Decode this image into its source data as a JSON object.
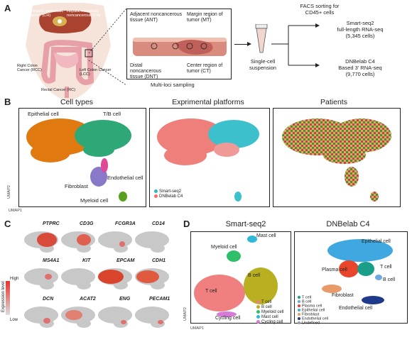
{
  "panel_labels": {
    "a": "A",
    "b": "B",
    "c": "C",
    "d": "D"
  },
  "panel_a": {
    "body_labels": [
      "Hepatic metastatic tumor (CH)",
      "Hepatic metastatic noncancerous (PH)",
      "Right Colon Cancer (RCC)",
      "Left Colon Cancer (LCC)",
      "Rectal Cancer (RC)"
    ],
    "loci": {
      "ant": "Adjacent noncancerous tissue (ANT)",
      "mt": "Margin region of tumor (MT)",
      "dnt": "Distal noncancerous tissue (DNT)",
      "ct": "Center region of tumor (CT)",
      "caption": "Multi-loci sampling"
    },
    "suspension": "Single-cell suspension",
    "facs": "FACS sorting for CD45+ cells",
    "smart": {
      "name": "Smart-seq2",
      "desc": "full-length RNA-seq",
      "cells": "(5,345 cells)"
    },
    "dnb": {
      "name": "DNBelab C4",
      "desc": "Based 3' RNA-seq",
      "cells": "(9,770 cells)"
    }
  },
  "panel_b": {
    "titles": [
      "Cell types",
      "Exprimental platforms",
      "Patients"
    ],
    "cell_type_labels": [
      "Epithelial cell",
      "T/B cell",
      "Endothelial cell",
      "Fibroblast",
      "Myeloid cell"
    ],
    "platform_legend": [
      {
        "label": "Smart-seq2",
        "color": "#2fb8c4"
      },
      {
        "label": "DNBelab C4",
        "color": "#ef6f6a"
      }
    ],
    "umap1": "UMAP1",
    "umap2": "UMAP2"
  },
  "panel_c": {
    "genes": [
      "PTPRC",
      "CD3G",
      "FCGR3A",
      "CD14",
      "MS4A1",
      "KIT",
      "EPCAM",
      "CDH1",
      "DCN",
      "ACAT2",
      "ENG",
      "PECAM1"
    ],
    "scale": {
      "high": "High",
      "low": "Low",
      "title": "Expression level"
    }
  },
  "panel_d": {
    "smart_title": "Smart-seq2",
    "dnb_title": "DNBelab C4",
    "smart_labels": [
      "Mast cell",
      "Myeloid cell",
      "T cell",
      "B cell",
      "Cycling cell"
    ],
    "smart_legend": [
      {
        "label": "T cell",
        "color": "#f08080"
      },
      {
        "label": "B cell",
        "color": "#b8b020"
      },
      {
        "label": "Myeloid cell",
        "color": "#2fbf6a"
      },
      {
        "label": "Mast cell",
        "color": "#2fb8d8"
      },
      {
        "label": "Cycling cell",
        "color": "#d67ad8"
      }
    ],
    "dnb_labels": [
      "Epithelial cell",
      "Plasma cell",
      "T cell",
      "B cell",
      "Fibroblast",
      "Endothelial cell"
    ],
    "dnb_legend": [
      {
        "label": "T cell",
        "color": "#1a9e8a"
      },
      {
        "label": "B cell",
        "color": "#6fa8dc"
      },
      {
        "label": "Plasma cell",
        "color": "#e8452c"
      },
      {
        "label": "Epithelial cell",
        "color": "#3fa8e0"
      },
      {
        "label": "Fibroblast",
        "color": "#e89a6a"
      },
      {
        "label": "Endothelial cell",
        "color": "#1f3a8a"
      },
      {
        "label": "Undefined",
        "color": "#999999"
      }
    ],
    "umap1": "UMAP1",
    "umap2": "UMAP2"
  }
}
